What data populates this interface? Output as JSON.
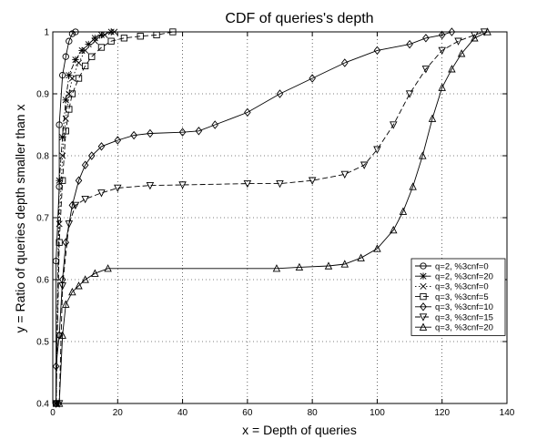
{
  "chart_data": {
    "type": "line",
    "title": "CDF of queries's depth",
    "xlabel": "x = Depth of queries",
    "ylabel": "y = Ratio of queries depth smaller than x",
    "xlim": [
      0,
      140
    ],
    "ylim": [
      0.4,
      1.0
    ],
    "x_ticks": [
      0,
      20,
      40,
      60,
      80,
      100,
      120,
      140
    ],
    "y_ticks": [
      0.4,
      0.5,
      0.6,
      0.7,
      0.8,
      0.9,
      1.0
    ],
    "grid": "dotted",
    "legend_position": "right",
    "series": [
      {
        "name": "q=2, %3cnf=0",
        "marker": "circle",
        "line": "solid",
        "points": [
          [
            1,
            0.4
          ],
          [
            1,
            0.63
          ],
          [
            2,
            0.75
          ],
          [
            2,
            0.85
          ],
          [
            3,
            0.93
          ],
          [
            4,
            0.96
          ],
          [
            5,
            0.985
          ],
          [
            6,
            0.997
          ],
          [
            7,
            1.0
          ]
        ]
      },
      {
        "name": "q=2, %3cnf=20",
        "marker": "star",
        "line": "dashdot",
        "points": [
          [
            1,
            0.4
          ],
          [
            2,
            0.76
          ],
          [
            3,
            0.83
          ],
          [
            4,
            0.89
          ],
          [
            5,
            0.93
          ],
          [
            7,
            0.955
          ],
          [
            9,
            0.97
          ],
          [
            11,
            0.98
          ],
          [
            13,
            0.99
          ],
          [
            15,
            0.995
          ],
          [
            18,
            1.0
          ]
        ]
      },
      {
        "name": "q=3, %3cnf=0",
        "marker": "x",
        "line": "dotted",
        "points": [
          [
            1,
            0.4
          ],
          [
            2,
            0.69
          ],
          [
            3,
            0.8
          ],
          [
            4,
            0.86
          ],
          [
            5,
            0.9
          ],
          [
            6,
            0.925
          ],
          [
            8,
            0.95
          ],
          [
            10,
            0.97
          ],
          [
            13,
            0.985
          ],
          [
            16,
            0.995
          ],
          [
            19,
            1.0
          ]
        ]
      },
      {
        "name": "q=3, %3cnf=5",
        "marker": "square",
        "line": "dashed",
        "points": [
          [
            1,
            0.4
          ],
          [
            2,
            0.66
          ],
          [
            3,
            0.76
          ],
          [
            4,
            0.84
          ],
          [
            5,
            0.875
          ],
          [
            6,
            0.9
          ],
          [
            8,
            0.925
          ],
          [
            10,
            0.945
          ],
          [
            12,
            0.96
          ],
          [
            15,
            0.975
          ],
          [
            18,
            0.985
          ],
          [
            22,
            0.99
          ],
          [
            27,
            0.993
          ],
          [
            32,
            0.995
          ],
          [
            37,
            1.0
          ]
        ]
      },
      {
        "name": "q=3, %3cnf=10",
        "marker": "diamond",
        "line": "solid",
        "points": [
          [
            1,
            0.4
          ],
          [
            1,
            0.46
          ],
          [
            2,
            0.51
          ],
          [
            3,
            0.6
          ],
          [
            4,
            0.66
          ],
          [
            6,
            0.72
          ],
          [
            8,
            0.76
          ],
          [
            10,
            0.785
          ],
          [
            12,
            0.8
          ],
          [
            15,
            0.815
          ],
          [
            20,
            0.825
          ],
          [
            25,
            0.833
          ],
          [
            30,
            0.836
          ],
          [
            40,
            0.838
          ],
          [
            45,
            0.84
          ],
          [
            50,
            0.85
          ],
          [
            60,
            0.87
          ],
          [
            70,
            0.9
          ],
          [
            80,
            0.925
          ],
          [
            90,
            0.95
          ],
          [
            100,
            0.97
          ],
          [
            110,
            0.98
          ],
          [
            115,
            0.99
          ],
          [
            120,
            0.995
          ],
          [
            123,
            1.0
          ]
        ]
      },
      {
        "name": "q=3, %3cnf=15",
        "marker": "triangle-down",
        "line": "dashed",
        "points": [
          [
            2,
            0.4
          ],
          [
            3,
            0.59
          ],
          [
            5,
            0.69
          ],
          [
            7,
            0.72
          ],
          [
            10,
            0.73
          ],
          [
            15,
            0.74
          ],
          [
            20,
            0.748
          ],
          [
            30,
            0.752
          ],
          [
            40,
            0.753
          ],
          [
            60,
            0.755
          ],
          [
            70,
            0.755
          ],
          [
            80,
            0.76
          ],
          [
            90,
            0.77
          ],
          [
            96,
            0.785
          ],
          [
            100,
            0.81
          ],
          [
            105,
            0.85
          ],
          [
            110,
            0.9
          ],
          [
            115,
            0.94
          ],
          [
            120,
            0.97
          ],
          [
            125,
            0.985
          ],
          [
            130,
            0.995
          ],
          [
            133,
            1.0
          ]
        ]
      },
      {
        "name": "q=3, %3cnf=20",
        "marker": "triangle-up",
        "line": "solid",
        "points": [
          [
            2,
            0.4
          ],
          [
            3,
            0.51
          ],
          [
            4,
            0.56
          ],
          [
            6,
            0.58
          ],
          [
            8,
            0.59
          ],
          [
            10,
            0.6
          ],
          [
            13,
            0.61
          ],
          [
            17,
            0.618
          ],
          [
            69,
            0.618
          ],
          [
            76,
            0.62
          ],
          [
            85,
            0.622
          ],
          [
            90,
            0.625
          ],
          [
            95,
            0.635
          ],
          [
            100,
            0.65
          ],
          [
            105,
            0.68
          ],
          [
            108,
            0.71
          ],
          [
            111,
            0.75
          ],
          [
            114,
            0.8
          ],
          [
            117,
            0.86
          ],
          [
            120,
            0.91
          ],
          [
            123,
            0.94
          ],
          [
            126,
            0.965
          ],
          [
            130,
            0.99
          ],
          [
            134,
            1.0
          ]
        ]
      }
    ]
  }
}
